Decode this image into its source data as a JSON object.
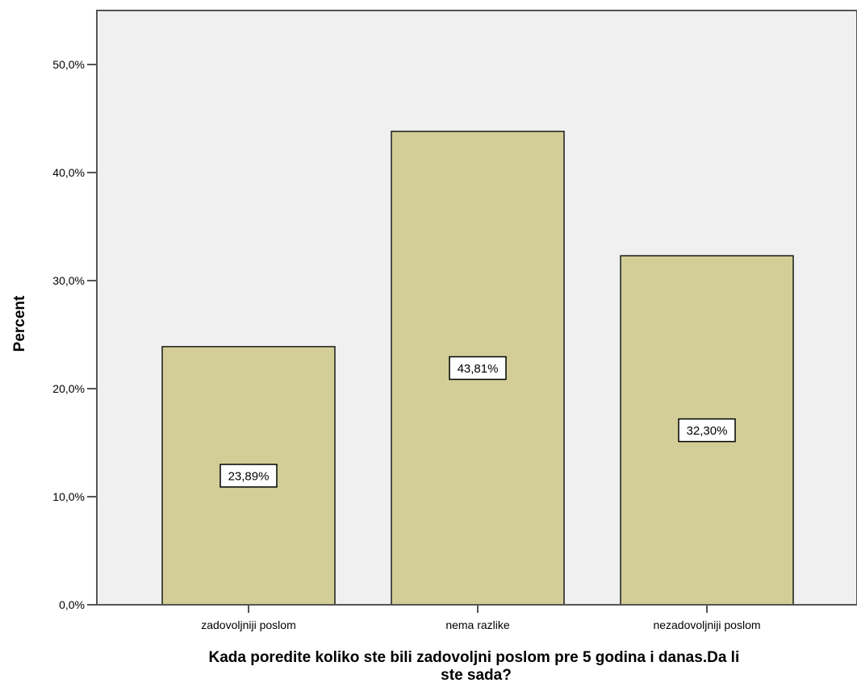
{
  "chart_data": {
    "type": "bar",
    "categories": [
      "zadovoljniji poslom",
      "nema razlike",
      "nezadovoljniji poslom"
    ],
    "values": [
      23.89,
      43.81,
      32.3
    ],
    "data_labels": [
      "23,89%",
      "43,81%",
      "32,30%"
    ],
    "title": "",
    "xlabel_lines": [
      "Kada poredite koliko ste bili zadovoljni poslom pre 5 godina i danas.Da li",
      "ste sada?"
    ],
    "ylabel": "Percent",
    "ylim": [
      0,
      55
    ],
    "yticks": [
      0,
      10,
      20,
      30,
      40,
      50
    ],
    "ytick_labels": [
      "0,0%",
      "10,0%",
      "20,0%",
      "30,0%",
      "40,0%",
      "50,0%"
    ],
    "grid": false,
    "colors": {
      "plot_background": "#f0f0f0",
      "bar_fill": "#d3ce97",
      "bar_stroke": "#1a1a1a",
      "axis": "#555555"
    }
  }
}
